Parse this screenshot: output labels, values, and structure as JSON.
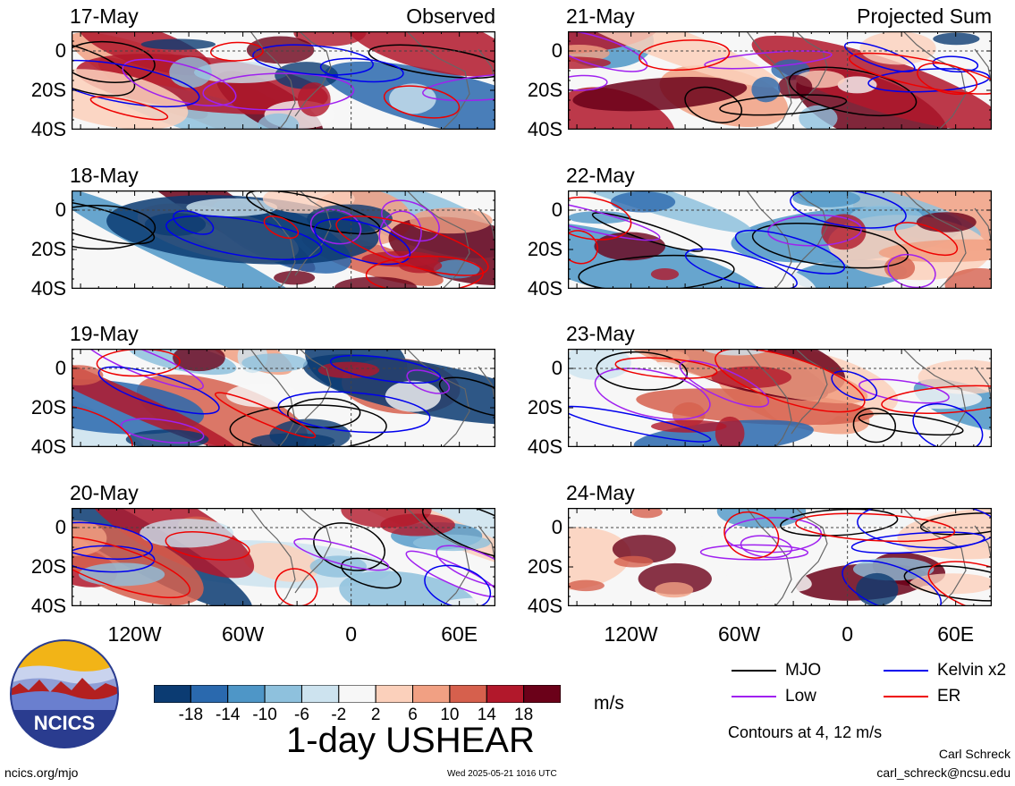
{
  "chart_data": {
    "type": "heatmap",
    "variable_title": "1-day USHEAR",
    "units": "m/s",
    "columns": [
      {
        "label": "Observed",
        "dates": [
          "17-May",
          "18-May",
          "19-May",
          "20-May"
        ]
      },
      {
        "label": "Projected Sum",
        "dates": [
          "21-May",
          "22-May",
          "23-May",
          "24-May"
        ]
      }
    ],
    "lat_ticks": [
      "0",
      "20S",
      "40S"
    ],
    "lat_range": [
      -40,
      10
    ],
    "lon_ticks": [
      "120W",
      "60W",
      "0",
      "60E"
    ],
    "lon_range": [
      -155,
      80
    ],
    "colorbar": {
      "tick_labels": [
        "-18",
        "-14",
        "-10",
        "-6",
        "-2",
        "2",
        "6",
        "10",
        "14",
        "18"
      ],
      "colors": [
        "#0b3b72",
        "#2a69ae",
        "#4e96c7",
        "#8ec1dd",
        "#cde3ef",
        "#f7f7f7",
        "#fbd0bb",
        "#f1a083",
        "#d6604d",
        "#b2182b",
        "#6b0119"
      ]
    },
    "contours": {
      "levels_text": "Contours at 4, 12 m/s",
      "series": [
        {
          "name": "MJO",
          "color": "#000000"
        },
        {
          "name": "Low",
          "color": "#a020f0"
        },
        {
          "name": "Kelvin x2",
          "color": "#0000ee"
        },
        {
          "name": "ER",
          "color": "#ee0000"
        }
      ]
    }
  },
  "logo": {
    "text": "NCICS"
  },
  "footer": {
    "url": "ncics.org/mjo",
    "timestamp": "Wed 2025-05-21 1016 UTC",
    "author": "Carl Schreck",
    "email": "carl_schreck@ncsu.edu"
  }
}
